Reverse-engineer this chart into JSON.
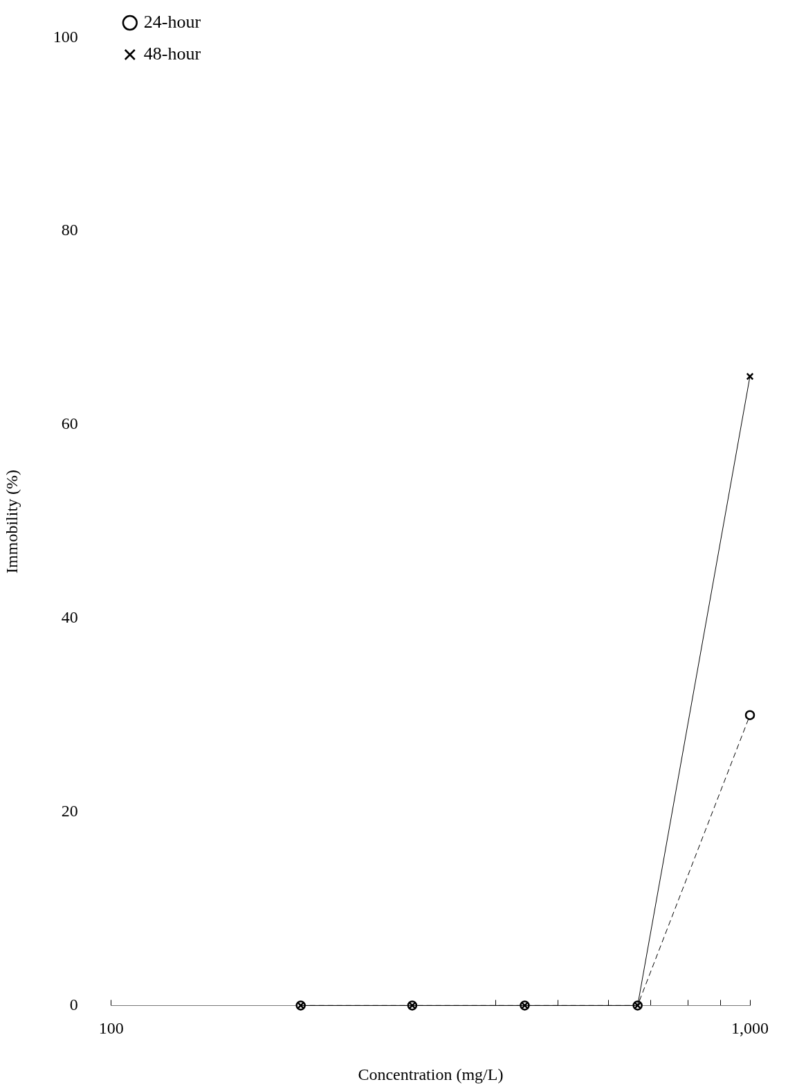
{
  "chart_data": {
    "type": "line",
    "xlabel": "Concentration (mg/L)",
    "ylabel": "Immobility (%)",
    "x": [
      198,
      296,
      444,
      667,
      1000
    ],
    "series": [
      {
        "name": "24-hour",
        "color": "#000000",
        "values": [
          0,
          0,
          0,
          0,
          30
        ],
        "marker": "circle",
        "line_style": "dashed"
      },
      {
        "name": "48-hour",
        "color": "#000000",
        "values": [
          0,
          0,
          0,
          0,
          65
        ],
        "marker": "cross",
        "line_style": "solid"
      }
    ],
    "log": "x",
    "xlim": [
      100,
      1000
    ],
    "xticks": [
      100,
      {
        "value": 400,
        "label": null
      },
      {
        "value": 500,
        "label": null
      },
      {
        "value": 600,
        "label": null
      },
      {
        "value": 700,
        "label": null
      },
      {
        "value": 800,
        "label": null
      },
      {
        "value": 900,
        "label": null
      },
      {
        "value": 1000,
        "label": "1,000"
      }
    ],
    "ylim": [
      0,
      100
    ],
    "yticks": [
      0,
      20,
      40,
      60,
      80,
      100
    ],
    "grid": false,
    "legend": "top left"
  }
}
